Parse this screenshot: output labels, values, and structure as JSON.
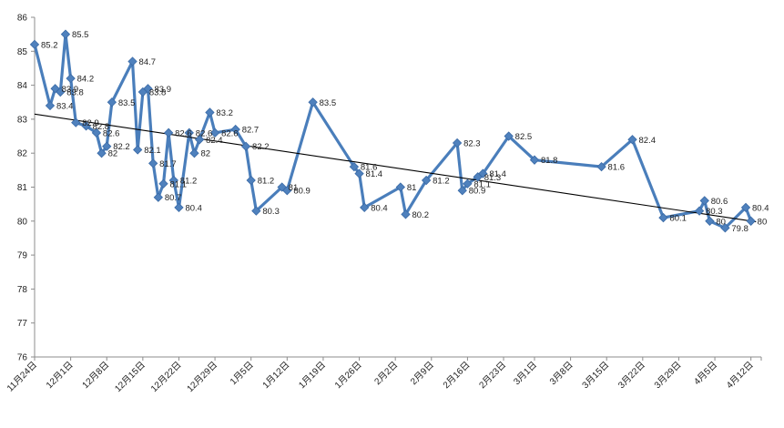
{
  "chart_data": {
    "type": "line",
    "title": "",
    "xlabel": "",
    "ylabel": "",
    "ylim": [
      76,
      86
    ],
    "yticks": [
      "76",
      "77",
      "78",
      "79",
      "80",
      "81",
      "82",
      "83",
      "84",
      "85",
      "86"
    ],
    "grid": false,
    "legend": "none",
    "x_tick_labels": [
      "11月24日",
      "12月1日",
      "12月8日",
      "12月15日",
      "12月22日",
      "12月29日",
      "1月5日",
      "1月12日",
      "1月19日",
      "1月26日",
      "2月2日",
      "2月9日",
      "2月16日",
      "2月23日",
      "3月1日",
      "3月8日",
      "3月15日",
      "3月22日",
      "3月29日",
      "4月5日",
      "4月12日"
    ],
    "series": [
      {
        "name": "",
        "color": "#4a7ebb",
        "points": [
          {
            "x": "11月24日",
            "y": 85.2
          },
          {
            "x": "11月27日",
            "y": 83.4
          },
          {
            "x": "11月28日",
            "y": 83.9
          },
          {
            "x": "11月29日",
            "y": 83.8
          },
          {
            "x": "11月30日",
            "y": 85.5
          },
          {
            "x": "12月1日",
            "y": 84.2
          },
          {
            "x": "12月2日",
            "y": 82.9
          },
          {
            "x": "12月4日",
            "y": 82.8
          },
          {
            "x": "12月6日",
            "y": 82.6
          },
          {
            "x": "12月7日",
            "y": 82.0
          },
          {
            "x": "12月8日",
            "y": 82.2
          },
          {
            "x": "12月9日",
            "y": 83.5
          },
          {
            "x": "12月13日",
            "y": 84.7
          },
          {
            "x": "12月14日",
            "y": 82.1
          },
          {
            "x": "12月15日",
            "y": 83.8
          },
          {
            "x": "12月16日",
            "y": 83.9
          },
          {
            "x": "12月17日",
            "y": 81.7
          },
          {
            "x": "12月18日",
            "y": 80.7
          },
          {
            "x": "12月19日",
            "y": 81.1
          },
          {
            "x": "12月20日",
            "y": 82.6
          },
          {
            "x": "12月21日",
            "y": 81.2
          },
          {
            "x": "12月22日",
            "y": 80.4
          },
          {
            "x": "12月24日",
            "y": 82.6
          },
          {
            "x": "12月25日",
            "y": 82.0
          },
          {
            "x": "12月26日",
            "y": 82.4
          },
          {
            "x": "12月28日",
            "y": 83.2
          },
          {
            "x": "12月29日",
            "y": 82.6
          },
          {
            "x": "1月2日",
            "y": 82.7
          },
          {
            "x": "1月4日",
            "y": 82.2
          },
          {
            "x": "1月5日",
            "y": 81.2
          },
          {
            "x": "1月6日",
            "y": 80.3
          },
          {
            "x": "1月11日",
            "y": 81.0
          },
          {
            "x": "1月12日",
            "y": 80.9
          },
          {
            "x": "1月17日",
            "y": 83.5
          },
          {
            "x": "1月25日",
            "y": 81.6
          },
          {
            "x": "1月26日",
            "y": 81.4
          },
          {
            "x": "1月27日",
            "y": 80.4
          },
          {
            "x": "2月3日",
            "y": 81.0
          },
          {
            "x": "2月4日",
            "y": 80.2
          },
          {
            "x": "2月8日",
            "y": 81.2
          },
          {
            "x": "2月14日",
            "y": 82.3
          },
          {
            "x": "2月15日",
            "y": 80.9
          },
          {
            "x": "2月16日",
            "y": 81.1
          },
          {
            "x": "2月18日",
            "y": 81.3
          },
          {
            "x": "2月19日",
            "y": 81.4
          },
          {
            "x": "2月24日",
            "y": 82.5
          },
          {
            "x": "3月1日",
            "y": 81.8
          },
          {
            "x": "3月14日",
            "y": 81.6
          },
          {
            "x": "3月20日",
            "y": 82.4
          },
          {
            "x": "3月26日",
            "y": 80.1
          },
          {
            "x": "4月2日",
            "y": 80.3
          },
          {
            "x": "4月3日",
            "y": 80.6
          },
          {
            "x": "4月4日",
            "y": 80.0
          },
          {
            "x": "4月7日",
            "y": 79.8
          },
          {
            "x": "4月11日",
            "y": 80.4
          },
          {
            "x": "4月12日",
            "y": 80.0
          }
        ]
      }
    ],
    "trendline": {
      "color": "#000000",
      "start": {
        "x": "11月24日",
        "y": 83.15
      },
      "end": {
        "x": "4月13日",
        "y": 79.98
      }
    }
  }
}
